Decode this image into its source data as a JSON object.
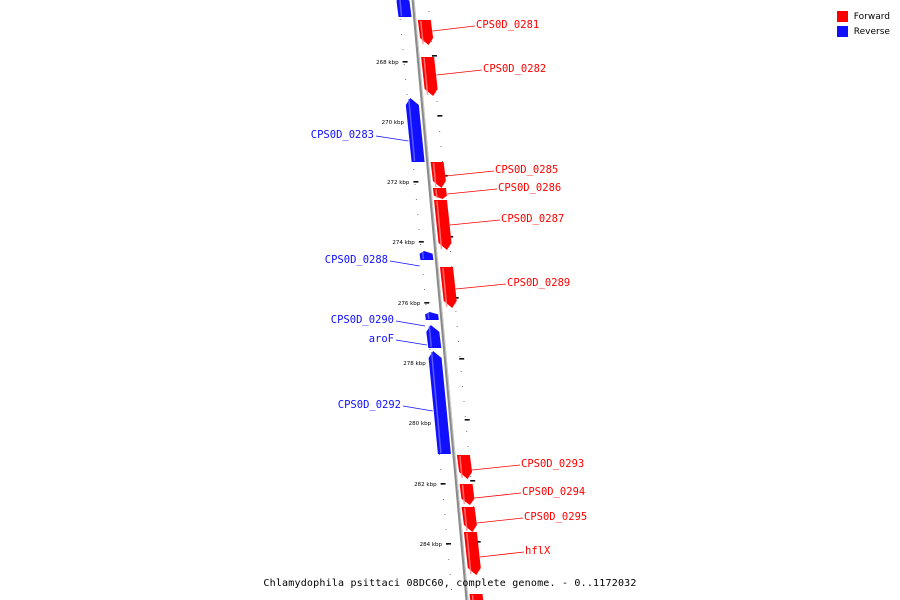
{
  "legend": {
    "forward_label": "Forward",
    "reverse_label": "Reverse",
    "forward_color": "#ff0000",
    "reverse_color": "#1010ff"
  },
  "caption": "Chlamydophila psittaci 08DC60, complete genome. - 0..1172032",
  "axis": {
    "tick_labels": [
      "268 kbp",
      "270 kbp",
      "272 kbp",
      "274 kbp",
      "276 kbp",
      "278 kbp",
      "280 kbp",
      "282 kbp",
      "284 kbp"
    ]
  },
  "genes": [
    {
      "id": "gene-reverse-top",
      "label": "",
      "strand": "reverse"
    },
    {
      "id": "gene-0281",
      "label": "CPS0D_0281",
      "strand": "forward"
    },
    {
      "id": "gene-0282",
      "label": "CPS0D_0282",
      "strand": "forward"
    },
    {
      "id": "gene-0283",
      "label": "CPS0D_0283",
      "strand": "reverse"
    },
    {
      "id": "gene-0285",
      "label": "CPS0D_0285",
      "strand": "forward"
    },
    {
      "id": "gene-0286",
      "label": "CPS0D_0286",
      "strand": "forward"
    },
    {
      "id": "gene-0287",
      "label": "CPS0D_0287",
      "strand": "forward"
    },
    {
      "id": "gene-0288",
      "label": "CPS0D_0288",
      "strand": "reverse"
    },
    {
      "id": "gene-0289",
      "label": "CPS0D_0289",
      "strand": "forward"
    },
    {
      "id": "gene-0290",
      "label": "CPS0D_0290",
      "strand": "reverse"
    },
    {
      "id": "gene-arof",
      "label": "aroF",
      "strand": "reverse"
    },
    {
      "id": "gene-0292",
      "label": "CPS0D_0292",
      "strand": "reverse"
    },
    {
      "id": "gene-0293",
      "label": "CPS0D_0293",
      "strand": "forward"
    },
    {
      "id": "gene-0294",
      "label": "CPS0D_0294",
      "strand": "forward"
    },
    {
      "id": "gene-0295",
      "label": "CPS0D_0295",
      "strand": "forward"
    },
    {
      "id": "gene-hflx",
      "label": "hflX",
      "strand": "forward"
    },
    {
      "id": "gene-forward-bottom",
      "label": "",
      "strand": "forward"
    }
  ]
}
